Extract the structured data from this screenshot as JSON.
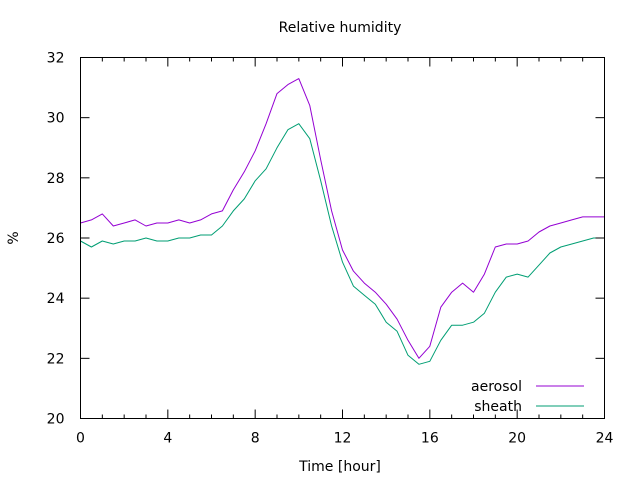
{
  "chart_data": {
    "type": "line",
    "title": "Relative humidity",
    "xlabel": "Time [hour]",
    "ylabel": "%",
    "xlim": [
      0,
      24
    ],
    "ylim": [
      20,
      32
    ],
    "xticks": [
      0,
      4,
      8,
      12,
      16,
      20,
      24
    ],
    "yticks": [
      20,
      22,
      24,
      26,
      28,
      30,
      32
    ],
    "grid": false,
    "legend_position": "bottom-right",
    "series": [
      {
        "name": "aerosol",
        "color": "#9400d3",
        "x": [
          0,
          0.5,
          1,
          1.5,
          2,
          2.5,
          3,
          3.5,
          4,
          4.5,
          5,
          5.5,
          6,
          6.5,
          7,
          7.5,
          8,
          8.5,
          9,
          9.5,
          10,
          10.5,
          11,
          11.5,
          12,
          12.5,
          13,
          13.5,
          14,
          14.5,
          15,
          15.5,
          16,
          16.5,
          17,
          17.5,
          18,
          18.5,
          19,
          19.5,
          20,
          20.5,
          21,
          21.5,
          22,
          22.5,
          23,
          23.5,
          24
        ],
        "values": [
          26.5,
          26.6,
          26.8,
          26.4,
          26.5,
          26.6,
          26.4,
          26.5,
          26.5,
          26.6,
          26.5,
          26.6,
          26.8,
          26.9,
          27.6,
          28.2,
          28.9,
          29.8,
          30.8,
          31.1,
          31.3,
          30.4,
          28.6,
          26.9,
          25.6,
          24.9,
          24.5,
          24.2,
          23.8,
          23.3,
          22.6,
          22.0,
          22.4,
          23.7,
          24.2,
          24.5,
          24.2,
          24.8,
          25.7,
          25.8,
          25.8,
          25.9,
          26.2,
          26.4,
          26.5,
          26.6,
          26.7,
          26.7,
          26.7
        ]
      },
      {
        "name": "sheath",
        "color": "#009e73",
        "x": [
          0,
          0.5,
          1,
          1.5,
          2,
          2.5,
          3,
          3.5,
          4,
          4.5,
          5,
          5.5,
          6,
          6.5,
          7,
          7.5,
          8,
          8.5,
          9,
          9.5,
          10,
          10.5,
          11,
          11.5,
          12,
          12.5,
          13,
          13.5,
          14,
          14.5,
          15,
          15.5,
          16,
          16.5,
          17,
          17.5,
          18,
          18.5,
          19,
          19.5,
          20,
          20.5,
          21,
          21.5,
          22,
          22.5,
          23,
          23.5,
          24
        ],
        "values": [
          25.9,
          25.7,
          25.9,
          25.8,
          25.9,
          25.9,
          26.0,
          25.9,
          25.9,
          26.0,
          26.0,
          26.1,
          26.1,
          26.4,
          26.9,
          27.3,
          27.9,
          28.3,
          29.0,
          29.6,
          29.8,
          29.3,
          27.9,
          26.4,
          25.2,
          24.4,
          24.1,
          23.8,
          23.2,
          22.9,
          22.1,
          21.8,
          21.9,
          22.6,
          23.1,
          23.1,
          23.2,
          23.5,
          24.2,
          24.7,
          24.8,
          24.7,
          25.1,
          25.5,
          25.7,
          25.8,
          25.9,
          26.0,
          26.0
        ]
      }
    ]
  }
}
